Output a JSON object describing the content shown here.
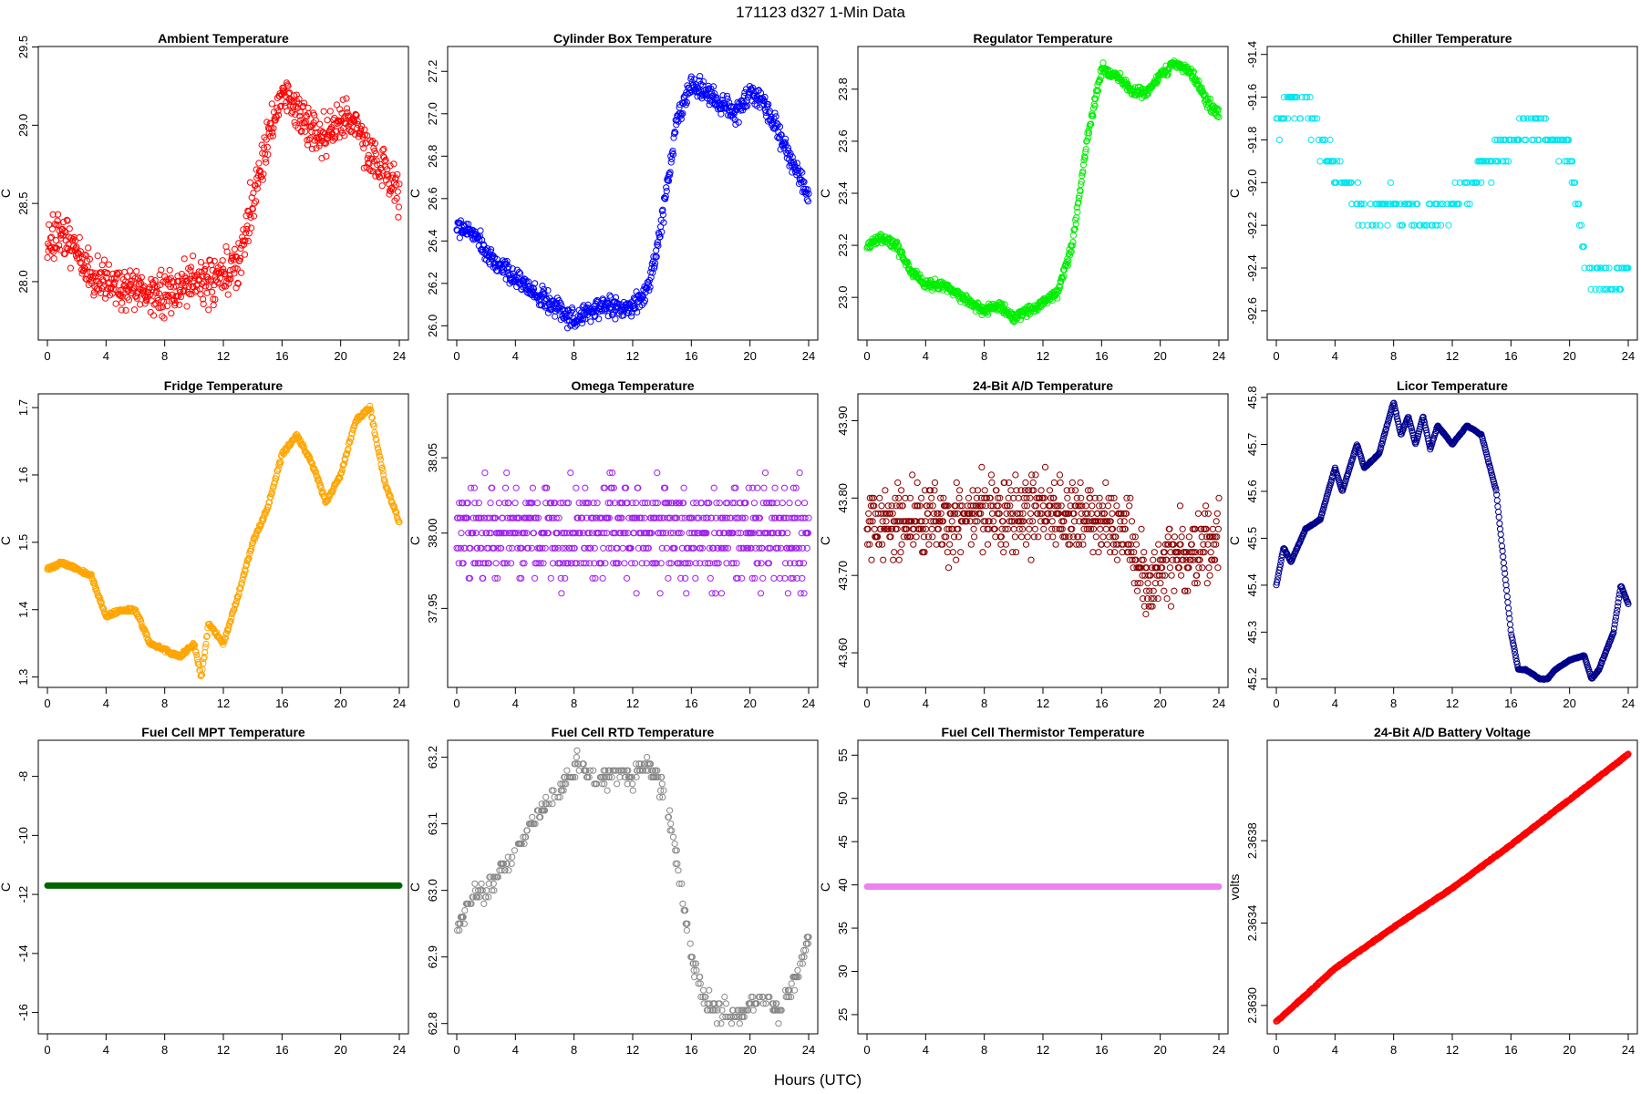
{
  "title": "171123   d327   1-Min Data",
  "x_label": "Hours (UTC)",
  "x_ticks": [
    0,
    4,
    8,
    12,
    16,
    20,
    24
  ],
  "x_tick_labels": [
    "0",
    "4",
    "8",
    "12",
    "16",
    "20",
    "24"
  ],
  "chart_data": [
    {
      "type": "scatter",
      "title": "Ambient Temperature",
      "ylabel": "C",
      "color": "#ff0000",
      "xlim": [
        0,
        24
      ],
      "ylim": [
        27.65,
        29.48
      ],
      "yticks": [
        28.0,
        28.5,
        29.0,
        29.5
      ],
      "ytick_labels": [
        "28.0",
        "28.5",
        "29.0",
        "29.5"
      ],
      "series": {
        "x": [
          0,
          1,
          2,
          3,
          4,
          5,
          6,
          7,
          8,
          9,
          10,
          11,
          12,
          13,
          14,
          15,
          16,
          17,
          18,
          19,
          20,
          21,
          22,
          23,
          24
        ],
        "y": [
          28.2,
          28.3,
          28.2,
          28.05,
          28.0,
          27.95,
          27.95,
          27.9,
          27.9,
          27.95,
          28.0,
          28.0,
          28.05,
          28.1,
          28.5,
          28.9,
          29.2,
          29.1,
          29.0,
          28.9,
          29.05,
          29.0,
          28.8,
          28.7,
          28.55
        ],
        "noise": 0.13,
        "mode": "scatter",
        "seed": 11
      }
    },
    {
      "type": "scatter",
      "title": "Cylinder Box Temperature",
      "ylabel": "C",
      "color": "#0000ff",
      "xlim": [
        0,
        24
      ],
      "ylim": [
        25.95,
        27.3
      ],
      "yticks": [
        26.0,
        26.2,
        26.4,
        26.6,
        26.8,
        27.0,
        27.2
      ],
      "ytick_labels": [
        "26.0",
        "26.2",
        "26.4",
        "26.6",
        "26.8",
        "27.0",
        "27.2"
      ],
      "series": {
        "x": [
          0,
          1,
          2,
          3,
          4,
          5,
          6,
          7,
          8,
          9,
          10,
          11,
          12,
          13,
          14,
          15,
          16,
          17,
          18,
          19,
          20,
          21,
          22,
          23,
          24
        ],
        "y": [
          26.45,
          26.45,
          26.35,
          26.28,
          26.22,
          26.18,
          26.12,
          26.08,
          26.02,
          26.08,
          26.1,
          26.08,
          26.1,
          26.15,
          26.5,
          26.95,
          27.15,
          27.1,
          27.05,
          27.0,
          27.1,
          27.05,
          26.9,
          26.75,
          26.62
        ],
        "noise": 0.045,
        "mode": "scatter",
        "seed": 12
      }
    },
    {
      "type": "scatter",
      "title": "Regulator Temperature",
      "ylabel": "C",
      "color": "#00ee00",
      "xlim": [
        0,
        24
      ],
      "ylim": [
        22.85,
        23.95
      ],
      "yticks": [
        23.0,
        23.2,
        23.4,
        23.6,
        23.8
      ],
      "ytick_labels": [
        "23.0",
        "23.2",
        "23.4",
        "23.6",
        "23.8"
      ],
      "series": {
        "x": [
          0,
          1,
          2,
          3,
          4,
          5,
          6,
          7,
          8,
          9,
          10,
          11,
          12,
          13,
          14,
          15,
          16,
          17,
          18,
          19,
          20,
          21,
          22,
          23,
          24
        ],
        "y": [
          23.2,
          23.23,
          23.2,
          23.1,
          23.05,
          23.05,
          23.02,
          22.98,
          22.95,
          22.97,
          22.92,
          22.95,
          22.98,
          23.02,
          23.2,
          23.6,
          23.88,
          23.85,
          23.8,
          23.78,
          23.85,
          23.9,
          23.87,
          23.77,
          23.7
        ],
        "noise": 0.018,
        "mode": "scatter",
        "seed": 13
      }
    },
    {
      "type": "scatter",
      "title": "Chiller Temperature",
      "ylabel": "C",
      "color": "#00e5ee",
      "xlim": [
        0,
        24
      ],
      "ylim": [
        -92.72,
        -91.38
      ],
      "yticks": [
        -92.6,
        -92.4,
        -92.2,
        -92.0,
        -91.8,
        -91.6,
        -91.4
      ],
      "ytick_labels": [
        "-92.6",
        "-92.4",
        "-92.2",
        "-92.0",
        "-91.8",
        "-91.6",
        "-91.4"
      ],
      "series": {
        "x": [
          0,
          1,
          2,
          3,
          4,
          5,
          6,
          7,
          8,
          9,
          10,
          11,
          12,
          13,
          14,
          15,
          16,
          17,
          18,
          19,
          20,
          21,
          22,
          23,
          24
        ],
        "y": [
          -91.75,
          -91.6,
          -91.65,
          -91.8,
          -91.95,
          -92.0,
          -92.15,
          -92.15,
          -92.1,
          -92.15,
          -92.2,
          -92.15,
          -92.1,
          -92.05,
          -91.95,
          -91.85,
          -91.8,
          -91.75,
          -91.75,
          -91.8,
          -91.85,
          -92.35,
          -92.45,
          -92.45,
          -92.4
        ],
        "noise": 0.06,
        "mode": "quant",
        "step": 0.1,
        "dens": 0.45,
        "seed": 14
      }
    },
    {
      "type": "scatter",
      "title": "Fridge Temperature",
      "ylabel": "C",
      "color": "#ffa500",
      "xlim": [
        0,
        24
      ],
      "ylim": [
        1.29,
        1.715
      ],
      "yticks": [
        1.3,
        1.4,
        1.5,
        1.6,
        1.7
      ],
      "ytick_labels": [
        "1.3",
        "1.4",
        "1.5",
        "1.6",
        "1.7"
      ],
      "series": {
        "x": [
          0,
          1,
          2,
          3,
          4,
          5,
          6,
          7,
          8,
          9,
          10,
          10.5,
          11,
          12,
          13,
          14,
          15,
          16,
          17,
          18,
          19,
          20,
          21,
          22,
          23,
          24
        ],
        "y": [
          1.46,
          1.47,
          1.46,
          1.45,
          1.39,
          1.4,
          1.4,
          1.35,
          1.34,
          1.33,
          1.35,
          1.3,
          1.38,
          1.35,
          1.42,
          1.5,
          1.55,
          1.63,
          1.66,
          1.62,
          1.56,
          1.6,
          1.68,
          1.7,
          1.59,
          1.53
        ],
        "noise": 0.003,
        "mode": "line",
        "seed": 15
      }
    },
    {
      "type": "scatter",
      "title": "Omega Temperature",
      "ylabel": "C",
      "color": "#a020f0",
      "xlim": [
        0,
        24
      ],
      "ylim": [
        37.9,
        38.09
      ],
      "yticks": [
        37.95,
        38.0,
        38.05
      ],
      "ytick_labels": [
        "37.95",
        "38.00",
        "38.05"
      ],
      "series": {
        "x": [
          0,
          24
        ],
        "y": [
          38.0,
          38.0
        ],
        "noise": 0.028,
        "mode": "quant",
        "step": 0.01,
        "dens": 1.0,
        "seed": 16
      }
    },
    {
      "type": "scatter",
      "title": "24-Bit A/D Temperature",
      "ylabel": "C",
      "color": "#8b0000",
      "xlim": [
        0,
        24
      ],
      "ylim": [
        43.56,
        43.93
      ],
      "yticks": [
        43.6,
        43.7,
        43.8,
        43.9
      ],
      "ytick_labels": [
        "43.60",
        "43.70",
        "43.80",
        "43.90"
      ],
      "series": {
        "x": [
          0,
          4,
          8,
          12,
          16,
          18,
          19,
          20,
          22,
          24
        ],
        "y": [
          43.77,
          43.77,
          43.78,
          43.78,
          43.77,
          43.75,
          43.68,
          43.72,
          43.73,
          43.75
        ],
        "noise": 0.04,
        "mode": "quant",
        "step": 0.01,
        "dens": 1.0,
        "seed": 17
      }
    },
    {
      "type": "scatter",
      "title": "Licor Temperature",
      "ylabel": "C",
      "color": "#00008b",
      "xlim": [
        0,
        24
      ],
      "ylim": [
        45.19,
        45.8
      ],
      "yticks": [
        45.2,
        45.3,
        45.4,
        45.5,
        45.6,
        45.7,
        45.8
      ],
      "ytick_labels": [
        "45.2",
        "45.3",
        "45.4",
        "45.5",
        "45.6",
        "45.7",
        "45.8"
      ],
      "series": {
        "x": [
          0,
          0.5,
          1,
          2,
          3,
          4,
          4.5,
          5,
          5.5,
          6,
          7,
          8,
          8.5,
          9,
          9.5,
          10,
          10.5,
          11,
          11.5,
          12,
          13,
          14,
          15,
          16,
          16.5,
          17,
          18,
          18.5,
          19,
          20,
          21,
          21.5,
          22,
          23,
          23.5,
          24
        ],
        "y": [
          45.4,
          45.48,
          45.45,
          45.52,
          45.54,
          45.65,
          45.6,
          45.65,
          45.7,
          45.65,
          45.68,
          45.79,
          45.72,
          45.76,
          45.7,
          45.76,
          45.69,
          45.74,
          45.72,
          45.7,
          45.74,
          45.72,
          45.6,
          45.3,
          45.22,
          45.22,
          45.2,
          45.2,
          45.22,
          45.24,
          45.25,
          45.2,
          45.22,
          45.3,
          45.4,
          45.36
        ],
        "noise": 0.001,
        "mode": "line",
        "seed": 18
      }
    },
    {
      "type": "line",
      "title": "Fuel Cell MPT Temperature",
      "ylabel": "C",
      "color": "#006400",
      "xlim": [
        0,
        24
      ],
      "ylim": [
        -16.6,
        -6.9
      ],
      "yticks": [
        -16,
        -14,
        -12,
        -10,
        -8
      ],
      "ytick_labels": [
        "-16",
        "-14",
        "-12",
        "-10",
        "-8"
      ],
      "series": {
        "x": [
          0,
          24
        ],
        "y": [
          -11.7,
          -11.7
        ],
        "noise": 0,
        "mode": "thick",
        "seed": 19
      }
    },
    {
      "type": "scatter",
      "title": "Fuel Cell RTD Temperature",
      "ylabel": "C",
      "color": "#888888",
      "xlim": [
        0,
        24
      ],
      "ylim": [
        62.79,
        63.22
      ],
      "yticks": [
        62.8,
        62.9,
        63.0,
        63.1,
        63.2
      ],
      "ytick_labels": [
        "62.8",
        "62.9",
        "63.0",
        "63.1",
        "63.2"
      ],
      "series": {
        "x": [
          0,
          1,
          2,
          3,
          4,
          5,
          6,
          7,
          8,
          8.5,
          9,
          10,
          11,
          12,
          13,
          14,
          15,
          16,
          17,
          18,
          19,
          20,
          21,
          22,
          23,
          24
        ],
        "y": [
          62.94,
          62.99,
          63.0,
          63.03,
          63.05,
          63.1,
          63.13,
          63.15,
          63.18,
          63.2,
          63.17,
          63.17,
          63.18,
          63.17,
          63.19,
          63.15,
          63.05,
          62.9,
          62.83,
          62.82,
          62.81,
          62.83,
          62.84,
          62.82,
          62.86,
          62.93
        ],
        "noise": 0.012,
        "mode": "quant",
        "step": 0.01,
        "dens": 0.55,
        "seed": 20
      }
    },
    {
      "type": "line",
      "title": "Fuel Cell Thermistor Temperature",
      "ylabel": "C",
      "color": "#ee82ee",
      "xlim": [
        0,
        24
      ],
      "ylim": [
        23.2,
        56.3
      ],
      "yticks": [
        25,
        30,
        35,
        40,
        45,
        50,
        55
      ],
      "ytick_labels": [
        "25",
        "30",
        "35",
        "40",
        "45",
        "50",
        "55"
      ],
      "series": {
        "x": [
          0,
          24
        ],
        "y": [
          39.8,
          39.8
        ],
        "noise": 0,
        "mode": "thick",
        "seed": 21
      }
    },
    {
      "type": "line",
      "title": "24-Bit A/D Battery Voltage",
      "ylabel": "volts",
      "color": "#ff0000",
      "xlim": [
        0,
        24
      ],
      "ylim": [
        2.36288,
        2.36427
      ],
      "yticks": [
        2.363,
        2.3634,
        2.3638
      ],
      "ytick_labels": [
        "2.3630",
        "2.3634",
        "2.3638"
      ],
      "series": {
        "x": [
          0,
          4,
          8,
          12,
          16,
          20,
          24
        ],
        "y": [
          2.36292,
          2.36318,
          2.36338,
          2.36357,
          2.36378,
          2.364,
          2.36422
        ],
        "noise": 3e-06,
        "mode": "line",
        "seed": 22
      }
    }
  ]
}
